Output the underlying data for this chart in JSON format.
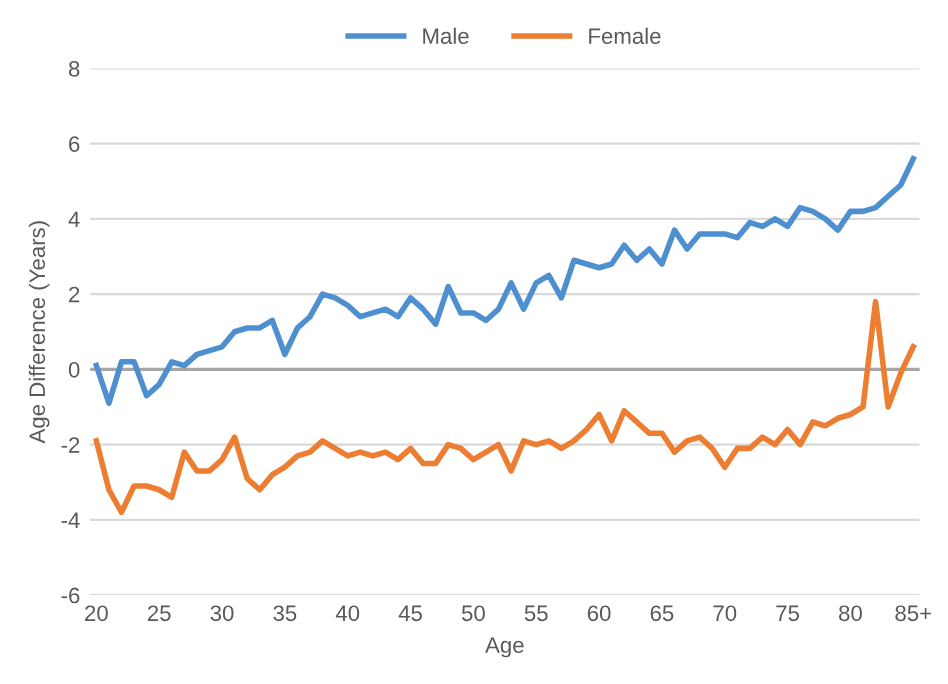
{
  "chart_data": {
    "type": "line",
    "xlabel": "Age",
    "ylabel": "Age Difference (Years)",
    "categories": [
      "20",
      null,
      null,
      null,
      null,
      "25",
      null,
      null,
      null,
      null,
      "30",
      null,
      null,
      null,
      null,
      "35",
      null,
      null,
      null,
      null,
      "40",
      null,
      null,
      null,
      null,
      "45",
      null,
      null,
      null,
      null,
      "50",
      null,
      null,
      null,
      null,
      "55",
      null,
      null,
      null,
      null,
      "60",
      null,
      null,
      null,
      null,
      "65",
      null,
      null,
      null,
      null,
      "70",
      null,
      null,
      null,
      null,
      "75",
      null,
      null,
      null,
      null,
      "80",
      null,
      null,
      null,
      null,
      "85+"
    ],
    "series": [
      {
        "name": "Male",
        "color": "#4e8fcf",
        "values": [
          0.1,
          -0.9,
          0.2,
          0.2,
          -0.7,
          -0.4,
          0.2,
          0.1,
          0.4,
          0.5,
          0.6,
          1.0,
          1.1,
          1.1,
          1.3,
          0.4,
          1.1,
          1.4,
          2.0,
          1.9,
          1.7,
          1.4,
          1.5,
          1.6,
          1.4,
          1.9,
          1.6,
          1.2,
          2.2,
          1.5,
          1.5,
          1.3,
          1.6,
          2.3,
          1.6,
          2.3,
          2.5,
          1.9,
          2.9,
          2.8,
          2.7,
          2.8,
          3.3,
          2.9,
          3.2,
          2.8,
          3.7,
          3.2,
          3.6,
          3.6,
          3.6,
          3.5,
          3.9,
          3.8,
          4.0,
          3.8,
          4.3,
          4.2,
          4.0,
          3.7,
          4.2,
          4.2,
          4.3,
          4.6,
          4.9,
          5.6
        ]
      },
      {
        "name": "Female",
        "color": "#ed7d31",
        "values": [
          -1.9,
          -3.2,
          -3.8,
          -3.1,
          -3.1,
          -3.2,
          -3.4,
          -2.2,
          -2.7,
          -2.7,
          -2.4,
          -1.8,
          -2.9,
          -3.2,
          -2.8,
          -2.6,
          -2.3,
          -2.2,
          -1.9,
          -2.1,
          -2.3,
          -2.2,
          -2.3,
          -2.2,
          -2.4,
          -2.1,
          -2.5,
          -2.5,
          -2.0,
          -2.1,
          -2.4,
          -2.2,
          -2.0,
          -2.7,
          -1.9,
          -2.0,
          -1.9,
          -2.1,
          -1.9,
          -1.6,
          -1.2,
          -1.9,
          -1.1,
          -1.4,
          -1.7,
          -1.7,
          -2.2,
          -1.9,
          -1.8,
          -2.1,
          -2.6,
          -2.1,
          -2.1,
          -1.8,
          -2.0,
          -1.6,
          -2.0,
          -1.4,
          -1.5,
          -1.3,
          -1.2,
          -1.0,
          1.8,
          -1.0,
          -0.1,
          0.6
        ]
      }
    ],
    "ylim": [
      -6,
      8
    ],
    "yticks": [
      -6,
      -4,
      -2,
      0,
      2,
      4,
      6,
      8
    ],
    "grid": "y",
    "legend": "top"
  }
}
